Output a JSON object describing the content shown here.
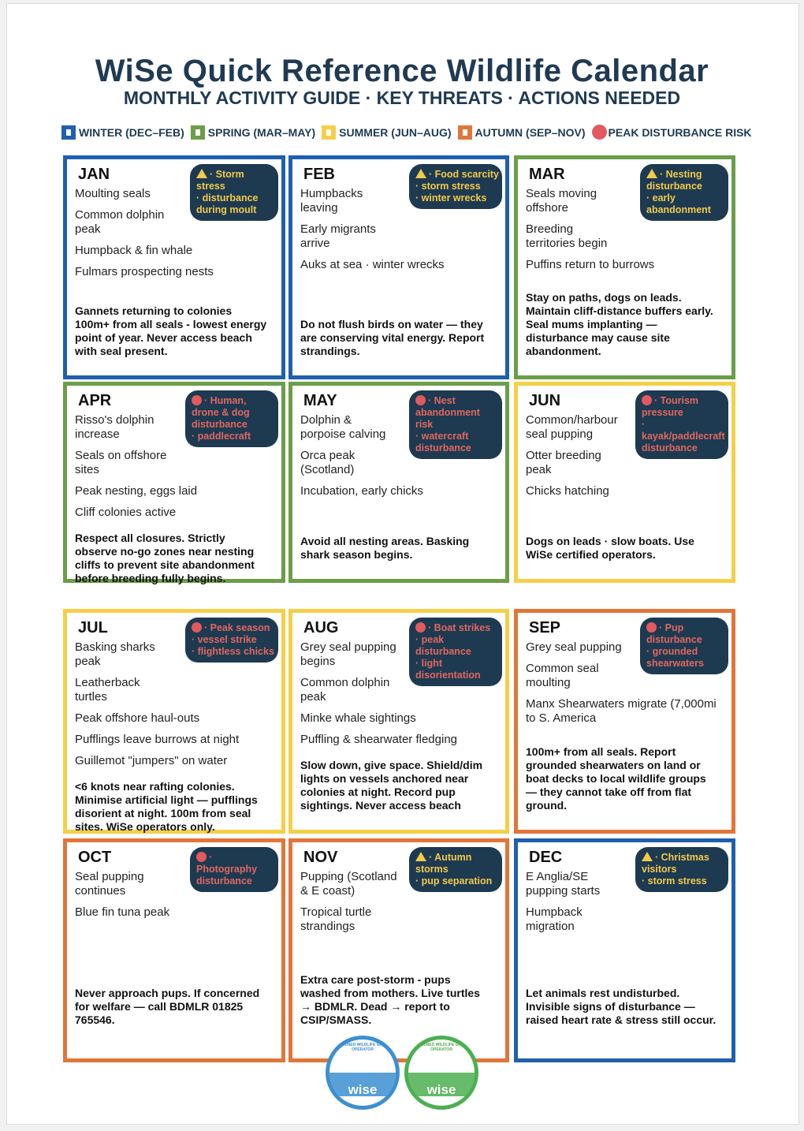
{
  "title": "WiSe Quick Reference Wildlife Calendar",
  "subtitle": "MONTHLY ACTIVITY GUIDE · KEY THREATS · ACTIONS NEEDED",
  "legend": [
    {
      "label": "WINTER (DEC–FEB)",
      "color": "#1f5fae"
    },
    {
      "label": "SPRING (MAR–MAY)",
      "color": "#6a9e48"
    },
    {
      "label": "SUMMER (JUN–AUG)",
      "color": "#f5cf48"
    },
    {
      "label": "AUTUMN (SEP–NOV)",
      "color": "#e0763a"
    },
    {
      "label": "PEAK DISTURBANCE RISK",
      "color": "#e05a5f"
    }
  ],
  "months": [
    {
      "name": "JAN",
      "season": "winter",
      "icon": "warning-icon",
      "threat": [
        "· Storm stress",
        "· disturbance",
        "during moult"
      ],
      "activities": [
        "Moulting seals",
        "Common dolphin peak",
        "Humpback & fin whale",
        "Fulmars prospecting nests"
      ],
      "action": "Gannets returning to colonies 100m+ from all seals - lowest energy point of year. Never access beach with seal present."
    },
    {
      "name": "FEB",
      "season": "winter",
      "icon": "warning-icon",
      "threat": [
        "· Food scarcity",
        "· storm stress",
        "· winter wrecks"
      ],
      "activities": [
        "Humpbacks leaving",
        "Early migrants arrive",
        "Auks at sea · winter wrecks"
      ],
      "action": "Do not flush birds on water — they are conserving vital energy. Report strandings."
    },
    {
      "name": "MAR",
      "season": "spring",
      "icon": "warning-icon",
      "threat": [
        "· Nesting",
        "disturbance",
        "· early",
        "abandonment"
      ],
      "activities": [
        "Seals moving offshore",
        "Breeding territories begin",
        "Puffins return to burrows"
      ],
      "action": "Stay on paths, dogs on leads. Maintain cliff-distance buffers early. Seal mums implanting — disturbance may cause site abandonment."
    },
    {
      "name": "APR",
      "season": "spring",
      "icon": "peak-risk-dot-icon",
      "threat": [
        "· Human,",
        "drone & dog",
        "disturbance",
        "· paddlecraft"
      ],
      "activities": [
        "Risso's dolphin increase",
        "Seals on offshore sites",
        "Peak nesting, eggs laid",
        "Cliff colonies active"
      ],
      "action": "Respect all closures. Strictly observe no-go zones near nesting cliffs to prevent site abandonment before breeding fully begins."
    },
    {
      "name": "MAY",
      "season": "spring",
      "icon": "peak-risk-dot-icon",
      "threat": [
        "· Nest",
        "abandonment risk",
        "· watercraft",
        "disturbance"
      ],
      "activities": [
        "Dolphin & porpoise calving",
        "Orca peak (Scotland)",
        "Incubation, early chicks"
      ],
      "action": "Avoid all nesting areas. Basking shark season begins."
    },
    {
      "name": "JUN",
      "season": "summer",
      "icon": "peak-risk-dot-icon",
      "threat": [
        "· Tourism",
        "pressure",
        "· kayak/paddlecraft",
        "disturbance"
      ],
      "activities": [
        "Common/harbour seal pupping",
        "Otter breeding peak",
        "Chicks hatching"
      ],
      "action": "Dogs on leads · slow boats. Use WiSe certified operators."
    },
    {
      "name": "JUL",
      "season": "summer",
      "icon": "peak-risk-dot-icon",
      "threat": [
        "· Peak season",
        "· vessel strike",
        "· flightless chicks"
      ],
      "activities": [
        "Basking sharks peak",
        "Leatherback turtles",
        "Peak offshore haul-outs",
        "Pufflings leave burrows at night",
        "Guillemot \"jumpers\" on water"
      ],
      "action": "<6 knots near rafting colonies. Minimise artificial light — pufflings disorient at night. 100m from seal sites. WiSe operators only."
    },
    {
      "name": "AUG",
      "season": "summer",
      "icon": "peak-risk-dot-icon",
      "threat": [
        "· Boat strikes",
        "· peak disturbance",
        "· light disorientation"
      ],
      "activities": [
        "Grey seal pupping begins",
        "Common dolphin peak",
        "Minke whale sightings",
        "Puffling & shearwater fledging"
      ],
      "action": "Slow down, give space. Shield/dim lights on vessels anchored near colonies at night. Record pup sightings. Never access beach"
    },
    {
      "name": "SEP",
      "season": "autumn",
      "icon": "peak-risk-dot-icon",
      "threat": [
        "· Pup",
        "disturbance",
        "· grounded",
        "shearwaters"
      ],
      "activities": [
        "Grey seal pupping",
        "Common seal moulting",
        "Manx Shearwaters migrate (7,000mi to S. America"
      ],
      "action": "100m+ from all seals. Report grounded shearwaters on land or boat decks to local wildlife groups — they cannot take off from flat ground."
    },
    {
      "name": "OCT",
      "season": "autumn",
      "icon": "peak-risk-dot-icon",
      "threat": [
        "· Photography",
        "disturbance"
      ],
      "activities": [
        "Seal pupping continues",
        "Blue fin tuna peak"
      ],
      "action": "Never approach pups. If concerned for welfare — call BDMLR 01825 765546."
    },
    {
      "name": "NOV",
      "season": "autumn",
      "icon": "warning-icon",
      "threat": [
        "· Autumn storms",
        "· pup separation"
      ],
      "activities": [
        "Pupping (Scotland & E coast)",
        "Tropical turtle strandings"
      ],
      "action": "Extra care post-storm - pups washed from mothers. Live turtles → BDMLR. Dead → report to CSIP/SMASS."
    },
    {
      "name": "DEC",
      "season": "winter",
      "icon": "warning-icon",
      "threat": [
        "· Christmas visitors",
        "· storm stress"
      ],
      "activities": [
        "E Anglia/SE pupping starts",
        "Humpback migration"
      ],
      "action": "Let animals rest undisturbed. Invisible signs of disturbance — raised heart rate & stress still occur."
    }
  ],
  "season_colors": {
    "winter": "#1f5fae",
    "spring": "#6a9e48",
    "summer": "#f5cf48",
    "autumn": "#e0763a"
  },
  "logos": [
    {
      "text": "wise",
      "ring": "TRAINED WILDLIFE SAFE OPERATOR",
      "color": "#3d8fd1"
    },
    {
      "text": "wise",
      "ring": "TRAINED WILDLIFE SAFE OPERATOR",
      "color": "#4caf50"
    }
  ]
}
